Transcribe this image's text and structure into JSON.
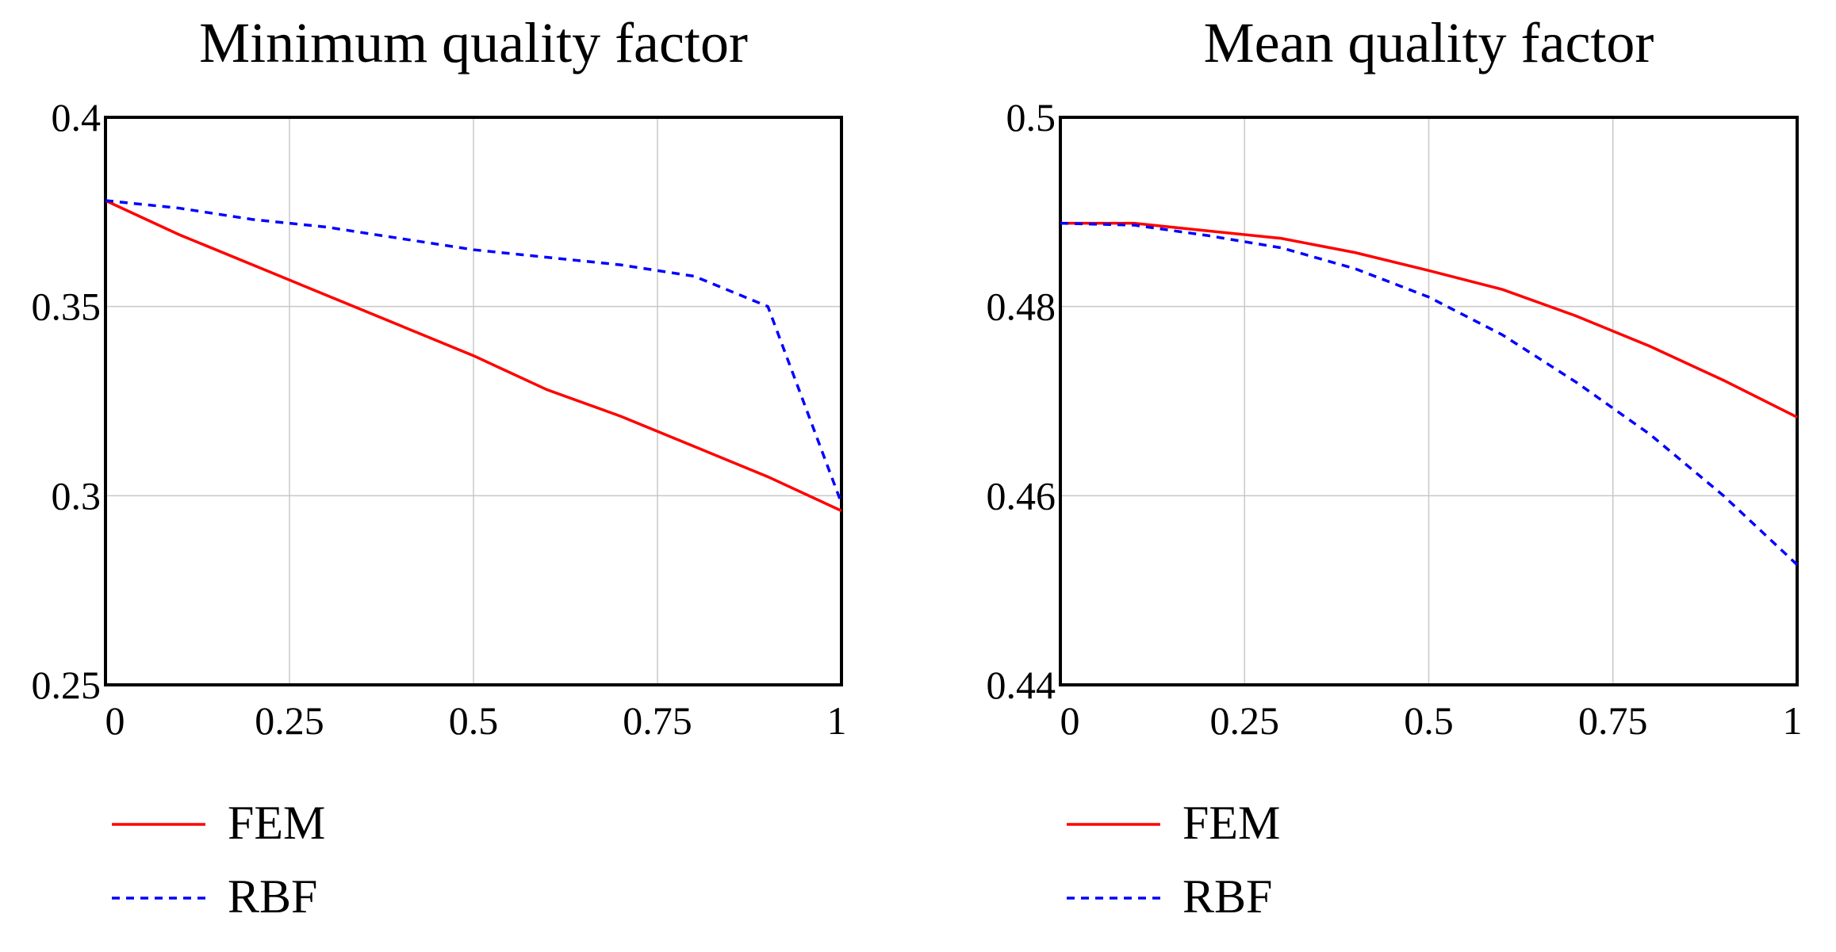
{
  "chart_data": [
    {
      "type": "line",
      "title": "Minimum quality factor",
      "x": [
        0,
        0.1,
        0.2,
        0.3,
        0.4,
        0.5,
        0.6,
        0.7,
        0.8,
        0.9,
        1
      ],
      "series": [
        {
          "name": "FEM",
          "color": "#ff0000",
          "dash": false,
          "values": [
            0.378,
            0.369,
            0.361,
            0.353,
            0.345,
            0.337,
            0.328,
            0.321,
            0.313,
            0.305,
            0.296
          ]
        },
        {
          "name": "RBF",
          "color": "#0000ff",
          "dash": true,
          "values": [
            0.378,
            0.376,
            0.373,
            0.371,
            0.368,
            0.365,
            0.363,
            0.361,
            0.358,
            0.35,
            0.298
          ]
        }
      ],
      "xlim": [
        0,
        1
      ],
      "xticks": [
        0,
        0.25,
        0.5,
        0.75,
        1
      ],
      "ylim": [
        0.25,
        0.4
      ],
      "yticks": [
        0.25,
        0.3,
        0.35,
        0.4
      ],
      "grid": true
    },
    {
      "type": "line",
      "title": "Mean quality factor",
      "x": [
        0,
        0.1,
        0.2,
        0.3,
        0.4,
        0.5,
        0.6,
        0.7,
        0.8,
        0.9,
        1
      ],
      "series": [
        {
          "name": "FEM",
          "color": "#ff0000",
          "dash": false,
          "values": [
            0.4888,
            0.4888,
            0.488,
            0.4872,
            0.4857,
            0.4838,
            0.4818,
            0.479,
            0.4758,
            0.4722,
            0.4683
          ]
        },
        {
          "name": "RBF",
          "color": "#0000ff",
          "dash": true,
          "values": [
            0.4888,
            0.4886,
            0.4875,
            0.4862,
            0.484,
            0.481,
            0.477,
            0.472,
            0.4665,
            0.46,
            0.4527
          ]
        }
      ],
      "xlim": [
        0,
        1
      ],
      "xticks": [
        0,
        0.25,
        0.5,
        0.75,
        1
      ],
      "ylim": [
        0.44,
        0.5
      ],
      "yticks": [
        0.44,
        0.46,
        0.48,
        0.5
      ],
      "grid": true
    }
  ]
}
